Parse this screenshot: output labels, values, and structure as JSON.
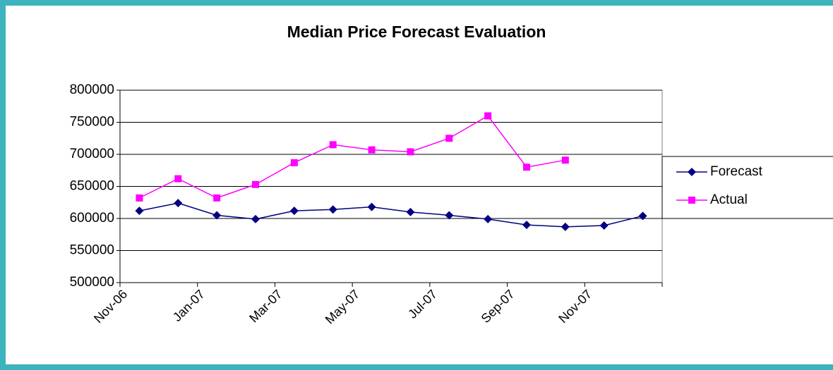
{
  "chart_data": {
    "type": "line",
    "title": "Median Price Forecast Evaluation",
    "categories": [
      "Nov-06",
      null,
      "Jan-07",
      null,
      "Mar-07",
      null,
      "May-07",
      null,
      "Jul-07",
      null,
      "Sep-07",
      null,
      "Nov-07",
      null
    ],
    "series": [
      {
        "name": "Forecast",
        "color": "#000080",
        "marker": "diamond",
        "values": [
          612000,
          624000,
          605000,
          599000,
          612000,
          614000,
          618000,
          610000,
          605000,
          599000,
          590000,
          587000,
          589000,
          604000
        ]
      },
      {
        "name": "Actual",
        "color": "#ff00ff",
        "marker": "square",
        "values": [
          632000,
          662000,
          632000,
          653000,
          687000,
          715000,
          707000,
          704000,
          725000,
          760000,
          680000,
          691000,
          null,
          null
        ]
      }
    ],
    "ylim": [
      500000,
      800000
    ],
    "yticks": [
      500000,
      550000,
      600000,
      650000,
      700000,
      750000,
      800000
    ],
    "grid": true,
    "legend": "right"
  }
}
